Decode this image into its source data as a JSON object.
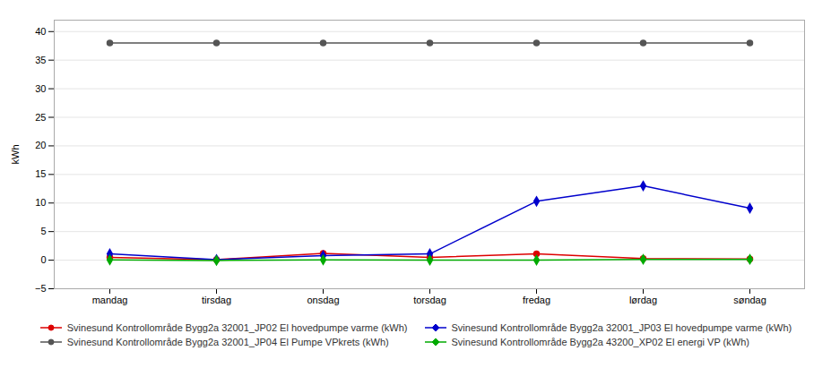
{
  "chart_data": {
    "type": "line",
    "categories": [
      "mandag",
      "tirsdag",
      "onsdag",
      "torsdag",
      "fredag",
      "lørdag",
      "søndag"
    ],
    "series": [
      {
        "name": "Svinesund Kontrollområde Bygg2a 32001_JP02 El hovedpumpe varme (kWh)",
        "color": "#dd0000",
        "marker": "circle",
        "values": [
          0.5,
          0.1,
          1.2,
          0.5,
          1.1,
          0.3,
          0.2
        ]
      },
      {
        "name": "Svinesund Kontrollområde Bygg2a 32001_JP03 El hovedpumpe varme (kWh)",
        "color": "#0000cc",
        "marker": "diamond",
        "values": [
          1.1,
          0.1,
          0.8,
          1.1,
          10.3,
          13.0,
          9.1
        ]
      },
      {
        "name": "Svinesund Kontrollområde Bygg2a 32001_JP04 El  Pumpe VPkrets (kWh)",
        "color": "#555555",
        "marker": "circle",
        "values": [
          38.0,
          38.0,
          38.0,
          38.0,
          38.0,
          38.0,
          38.0
        ]
      },
      {
        "name": "Svinesund Kontrollområde Bygg2a 43200_XP02 El energi VP (kWh)",
        "color": "#00aa00",
        "marker": "diamond",
        "values": [
          0.05,
          -0.05,
          0.05,
          0.02,
          0.02,
          0.15,
          0.15
        ]
      }
    ],
    "ylabel": "kWh",
    "ylim": [
      -5,
      42
    ],
    "yticks": [
      -5,
      0,
      5,
      10,
      15,
      20,
      25,
      30,
      35,
      40
    ],
    "grid": true,
    "legend": "bottom"
  }
}
